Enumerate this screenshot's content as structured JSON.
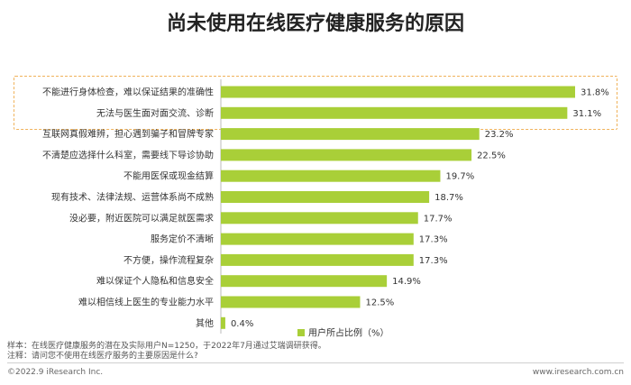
{
  "chart_data": {
    "type": "bar",
    "orientation": "horizontal",
    "title": "尚未使用在线医疗健康服务的原因",
    "categories": [
      "不能进行身体检查，难以保证结果的准确性",
      "无法与医生面对面交流、诊断",
      "互联网真假难辨，担心遇到骗子和冒牌专家",
      "不清楚应选择什么科室，需要线下导诊协助",
      "不能用医保或现金结算",
      "现有技术、法律法规、运营体系尚不成熟",
      "没必要，附近医院可以满足就医需求",
      "服务定价不清晰",
      "不方便，操作流程复杂",
      "难以保证个人隐私和信息安全",
      "难以相信线上医生的专业能力水平",
      "其他"
    ],
    "series": [
      {
        "name": "用户所占比例（%）",
        "values": [
          31.8,
          31.1,
          23.2,
          22.5,
          19.7,
          18.7,
          17.7,
          17.3,
          17.3,
          14.9,
          12.5,
          0.4
        ],
        "labels": [
          "31.8%",
          "31.1%",
          "23.2%",
          "22.5%",
          "19.7%",
          "18.7%",
          "17.7%",
          "17.3%",
          "17.3%",
          "14.9%",
          "12.5%",
          "0.4%"
        ]
      }
    ],
    "xlim": [
      0,
      31.8
    ],
    "bar_color": "#a9cf38",
    "highlight_color": "#f0b25a",
    "highlighted_categories": [
      0,
      1
    ],
    "legend_position": "bottom-center",
    "grid": false
  },
  "notes": {
    "sample": "样本：在线医疗健康服务的潜在及实际用户N=1250，于2022年7月通过艾瑞调研获得。",
    "remark": "注释：请问您不使用在线医疗服务的主要原因是什么?"
  },
  "footer": {
    "copyright": "©2022.9 iResearch Inc.",
    "website": "www.iresearch.com.cn"
  }
}
